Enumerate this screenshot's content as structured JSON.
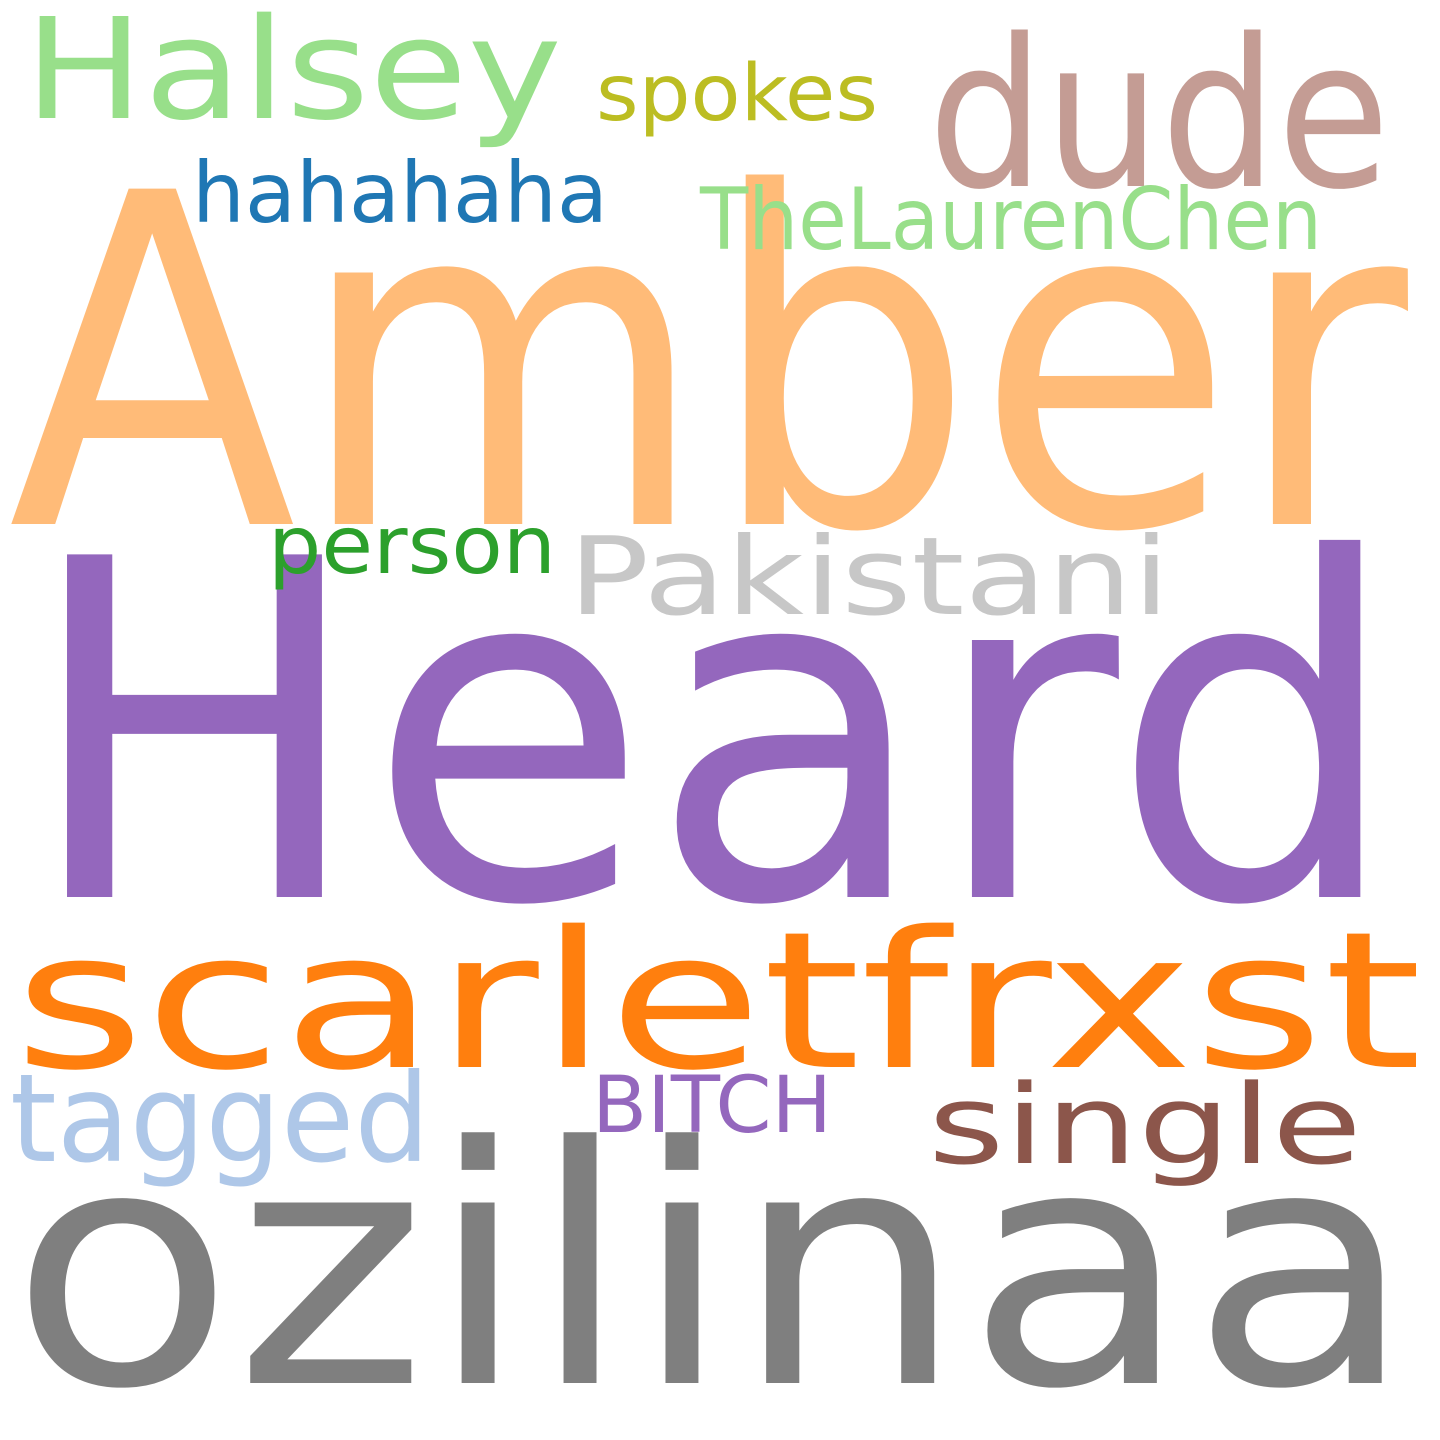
{
  "words": [
    {
      "text": "Amber",
      "color": "#ffbb78"
    },
    {
      "text": "Heard",
      "color": "#9467bd"
    },
    {
      "text": "ozilinaa",
      "color": "#7f7f7f"
    },
    {
      "text": "scarletfrxst",
      "color": "#ff7f0e"
    },
    {
      "text": "dude",
      "color": "#c49c94"
    },
    {
      "text": "Halsey",
      "color": "#98df8a"
    },
    {
      "text": "spokes",
      "color": "#bcbd22"
    },
    {
      "text": "hahahaha",
      "color": "#1f77b4"
    },
    {
      "text": "TheLaurenChen",
      "color": "#98df8a"
    },
    {
      "text": "person",
      "color": "#2ca02c"
    },
    {
      "text": "Pakistani",
      "color": "#c7c7c7"
    },
    {
      "text": "tagged",
      "color": "#aec7e8"
    },
    {
      "text": "BITCH",
      "color": "#9467bd"
    },
    {
      "text": "single",
      "color": "#8c564b"
    }
  ]
}
